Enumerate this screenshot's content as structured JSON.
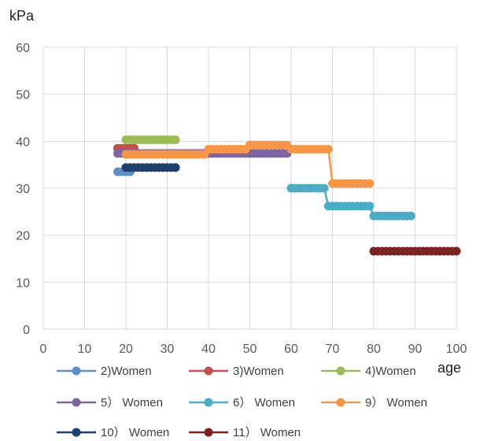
{
  "chart_data": {
    "type": "line",
    "ylabel": "kPa",
    "xlabel": "age",
    "xlim": [
      0,
      100
    ],
    "ylim": [
      0,
      60
    ],
    "xticks": [
      "0",
      "10",
      "20",
      "30",
      "40",
      "50",
      "60",
      "70",
      "80",
      "90",
      "100"
    ],
    "yticks": [
      "0",
      "10",
      "20",
      "30",
      "40",
      "50",
      "60"
    ],
    "grid": true,
    "legend": "bottom",
    "series": [
      {
        "name": "2)Women",
        "color": "#5b8fc8",
        "x": [
          18,
          19,
          20,
          21
        ],
        "y": [
          33.5,
          33.5,
          33.5,
          33.5
        ]
      },
      {
        "name": "3)Women",
        "color": "#c0504d",
        "x": [
          18,
          19,
          20,
          21,
          22
        ],
        "y": [
          38.5,
          38.5,
          38.5,
          38.5,
          38.5
        ]
      },
      {
        "name": "4)Women",
        "color": "#9bbb59",
        "x": [
          20,
          21,
          22,
          23,
          24,
          25,
          26,
          27,
          28,
          29,
          30,
          31,
          32
        ],
        "y": [
          40.3,
          40.3,
          40.3,
          40.3,
          40.3,
          40.3,
          40.3,
          40.3,
          40.3,
          40.3,
          40.3,
          40.3,
          40.3
        ]
      },
      {
        "name": "5） Women",
        "color": "#8064a2",
        "x": [
          18,
          19,
          20,
          21,
          22,
          23,
          24,
          25,
          26,
          27,
          28,
          29,
          30,
          31,
          32,
          33,
          34,
          35,
          36,
          37,
          38,
          39,
          40,
          41,
          42,
          43,
          44,
          45,
          46,
          47,
          48,
          49,
          50,
          51,
          52,
          53,
          54,
          55,
          56,
          57,
          58,
          59
        ],
        "y": [
          37.4,
          37.4,
          37.4,
          37.4,
          37.4,
          37.4,
          37.4,
          37.4,
          37.4,
          37.4,
          37.4,
          37.4,
          37.4,
          37.4,
          37.4,
          37.4,
          37.4,
          37.4,
          37.4,
          37.4,
          37.4,
          37.4,
          37.4,
          37.4,
          37.4,
          37.4,
          37.4,
          37.4,
          37.4,
          37.4,
          37.4,
          37.4,
          37.4,
          37.4,
          37.4,
          37.4,
          37.4,
          37.4,
          37.4,
          37.4,
          37.4,
          37.4
        ]
      },
      {
        "name": "6） Women",
        "color": "#4bacc6",
        "x": [
          60,
          61,
          62,
          63,
          64,
          65,
          66,
          67,
          68,
          69,
          70,
          71,
          72,
          73,
          74,
          75,
          76,
          77,
          78,
          79,
          80,
          81,
          82,
          83,
          84,
          85,
          86,
          87,
          88,
          89
        ],
        "y": [
          30,
          30,
          30,
          30,
          30,
          30,
          30,
          30,
          30,
          26.2,
          26.2,
          26.2,
          26.2,
          26.2,
          26.2,
          26.2,
          26.2,
          26.2,
          26.2,
          26.2,
          24.1,
          24.1,
          24.1,
          24.1,
          24.1,
          24.1,
          24.1,
          24.1,
          24.1,
          24.1
        ]
      },
      {
        "name": "9） Women",
        "color": "#f79646",
        "x": [
          20,
          21,
          22,
          23,
          24,
          25,
          26,
          27,
          28,
          29,
          30,
          31,
          32,
          33,
          34,
          35,
          36,
          37,
          38,
          39,
          40,
          41,
          42,
          43,
          44,
          45,
          46,
          47,
          48,
          49,
          50,
          51,
          52,
          53,
          54,
          55,
          56,
          57,
          58,
          59,
          60,
          61,
          62,
          63,
          64,
          65,
          66,
          67,
          68,
          69,
          70,
          71,
          72,
          73,
          74,
          75,
          76,
          77,
          78,
          79
        ],
        "y": [
          37.2,
          37.2,
          37.2,
          37.2,
          37.2,
          37.2,
          37.2,
          37.2,
          37.2,
          37.2,
          37.2,
          37.2,
          37.2,
          37.2,
          37.2,
          37.2,
          37.2,
          37.2,
          37.2,
          37.2,
          38.3,
          38.3,
          38.3,
          38.3,
          38.3,
          38.3,
          38.3,
          38.3,
          38.3,
          38.3,
          39.2,
          39.2,
          39.2,
          39.2,
          39.2,
          39.2,
          39.2,
          39.2,
          39.2,
          39.2,
          38.3,
          38.3,
          38.3,
          38.3,
          38.3,
          38.3,
          38.3,
          38.3,
          38.3,
          38.3,
          31,
          31,
          31,
          31,
          31,
          31,
          31,
          31,
          31,
          31
        ]
      },
      {
        "name": "10） Women",
        "color": "#1f3f6e",
        "x": [
          20,
          21,
          22,
          23,
          24,
          25,
          26,
          27,
          28,
          29,
          30,
          31,
          32
        ],
        "y": [
          34.4,
          34.4,
          34.4,
          34.4,
          34.4,
          34.4,
          34.4,
          34.4,
          34.4,
          34.4,
          34.4,
          34.4,
          34.4
        ]
      },
      {
        "name": "11） Women",
        "color": "#7b2323",
        "x": [
          80,
          81,
          82,
          83,
          84,
          85,
          86,
          87,
          88,
          89,
          90,
          91,
          92,
          93,
          94,
          95,
          96,
          97,
          98,
          99,
          100
        ],
        "y": [
          16.6,
          16.6,
          16.6,
          16.6,
          16.6,
          16.6,
          16.6,
          16.6,
          16.6,
          16.6,
          16.6,
          16.6,
          16.6,
          16.6,
          16.6,
          16.6,
          16.6,
          16.6,
          16.6,
          16.6,
          16.6
        ]
      }
    ]
  }
}
